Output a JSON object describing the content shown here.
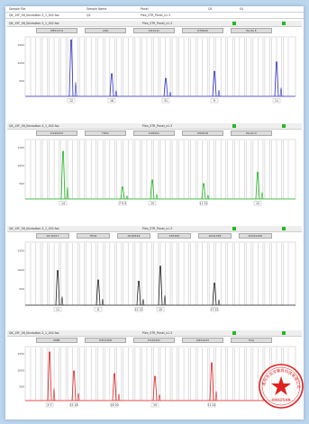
{
  "header": {
    "row1": [
      "Sample File",
      "Sample Name",
      "Panel",
      "QS",
      "S4"
    ],
    "row2": [
      "QK_15F_56_Kindsdtan-3_1_002.fsa",
      "Q2",
      "Plex_STR_Panel_v1.3"
    ]
  },
  "panels": [
    {
      "title": "QK_15F_56_Kindsdtan-3_1_002.fsa",
      "panel_name": "Plex_STR_Panel_v1.3",
      "markers": [
        "D8S1179",
        "vWA",
        "D21S11",
        "D7S820",
        "Penta E"
      ],
      "color": "#3030c8",
      "y_ticks": [
        "1500",
        "1000",
        "500"
      ],
      "peaks": [
        {
          "x": 0.17,
          "h": 0.95,
          "label": "12"
        },
        {
          "x": 0.32,
          "h": 0.38,
          "label": "16"
        },
        {
          "x": 0.52,
          "h": 0.3,
          "label": "31"
        },
        {
          "x": 0.7,
          "h": 0.42,
          "label": "9"
        },
        {
          "x": 0.93,
          "h": 0.58,
          "label": "11"
        }
      ],
      "peak_labels": [
        "12",
        "16",
        "31",
        "9",
        "11"
      ]
    },
    {
      "title": "QK_15F_56_Kindsdtan-3_1_002.fsa",
      "panel_name": "Plex_STR_Panel_v1.3",
      "markers": [
        "D19S433",
        "TH01",
        "D18S51",
        "D5S818",
        "Penta D"
      ],
      "color": "#18b418",
      "y_ticks": [
        "1500",
        "1000",
        "500"
      ],
      "peaks": [
        {
          "x": 0.14,
          "h": 0.8,
          "label": "14"
        },
        {
          "x": 0.36,
          "h": 0.2,
          "label": "7"
        },
        {
          "x": 0.47,
          "h": 0.32,
          "label": "15"
        },
        {
          "x": 0.66,
          "h": 0.26,
          "label": "11"
        },
        {
          "x": 0.86,
          "h": 0.45,
          "label": "12"
        }
      ],
      "peak_labels": [
        "14",
        "7 9.3",
        "15",
        "11 12",
        "12"
      ]
    },
    {
      "title": "QK_15F_56_Kindsdtan-3_1_002.fsa",
      "panel_name": "Plex_STR_Panel_v1.3",
      "markers": [
        "D13S317",
        "TPOX",
        "D16S539",
        "CSF1PO",
        "D2S1338",
        "D22S1045"
      ],
      "color": "#222222",
      "y_ticks": [
        "1500",
        "1000",
        "500"
      ],
      "peaks": [
        {
          "x": 0.12,
          "h": 0.55,
          "label": "11"
        },
        {
          "x": 0.27,
          "h": 0.4,
          "label": "8"
        },
        {
          "x": 0.42,
          "h": 0.38,
          "label": "12"
        },
        {
          "x": 0.5,
          "h": 0.62,
          "label": "10"
        },
        {
          "x": 0.7,
          "h": 0.35,
          "label": "17"
        }
      ],
      "peak_labels": [
        "11",
        "8",
        "12 13",
        "10",
        "17 22"
      ]
    },
    {
      "title": "QK_15F_56_Kindsdtan-3_1_002.fsa",
      "panel_name": "Plex_STR_Panel_v1.3",
      "markers": [
        "AMEL",
        "D3S1358",
        "D12S391",
        "D6S1043",
        "FGA"
      ],
      "color": "#e02020",
      "y_ticks": [
        "1500",
        "1000",
        "500"
      ],
      "peaks": [
        {
          "x": 0.09,
          "h": 0.9,
          "label": "X"
        },
        {
          "x": 0.18,
          "h": 0.55,
          "label": "15 16"
        },
        {
          "x": 0.33,
          "h": 0.5,
          "label": "18 20"
        },
        {
          "x": 0.48,
          "h": 0.45,
          "label": "19"
        },
        {
          "x": 0.69,
          "h": 0.7,
          "label": "21"
        }
      ],
      "peak_labels": [
        "X Y",
        "15 16",
        "18 20",
        "19",
        "21 24"
      ]
    }
  ],
  "stamp": {
    "text": "苏州市北龙鲁尚科技有限公司",
    "sub": "亲缘鉴定专用章",
    "color": "#e02020"
  }
}
